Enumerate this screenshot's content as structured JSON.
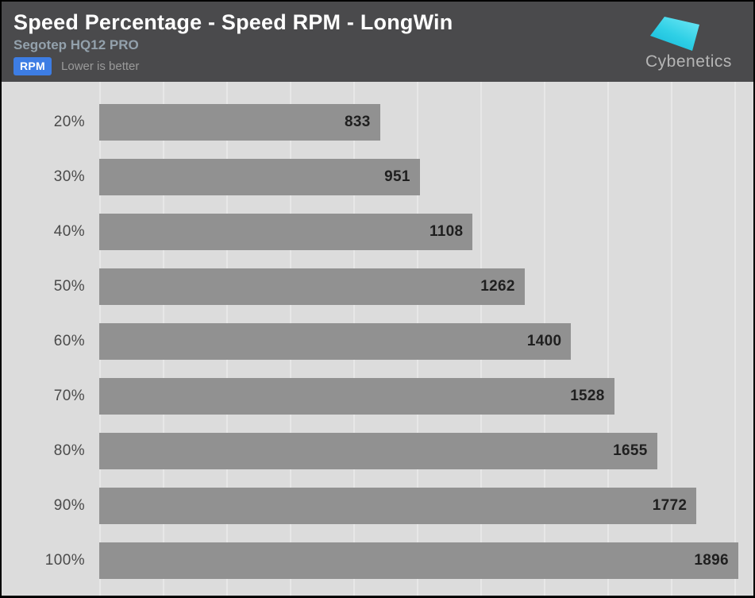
{
  "header": {
    "title": "Speed Percentage - Speed RPM - LongWin",
    "subtitle": "Segotep HQ12 PRO",
    "metric_badge": "RPM",
    "note": "Lower is better",
    "logo_text": "Cybenetics"
  },
  "colors": {
    "header_bg": "#4a4a4c",
    "badge_bg": "#3d7de4",
    "subtitle": "#93a1ac",
    "note": "#9a9a9a",
    "chart_bg": "#dcdcdc",
    "gridline": "#e7e7e7",
    "bar": "#919191",
    "value_label": "#1f1f1f",
    "category_label": "#4a4a4a",
    "logo_cyan_light": "#64e3f2",
    "logo_cyan_dark": "#12b5d8"
  },
  "chart_data": {
    "type": "bar",
    "orientation": "horizontal",
    "title": "Speed Percentage - Speed RPM - LongWin",
    "subtitle": "Segotep HQ12 PRO",
    "unit": "RPM",
    "note": "Lower is better",
    "categories": [
      "20%",
      "30%",
      "40%",
      "50%",
      "60%",
      "70%",
      "80%",
      "90%",
      "100%"
    ],
    "values": [
      833,
      951,
      1108,
      1262,
      1400,
      1528,
      1655,
      1772,
      1896
    ],
    "xlabel": "",
    "ylabel": "Speed Percentage",
    "xlim": [
      0,
      1941
    ],
    "grid": "vertical",
    "gridline_spacing_px": 80,
    "value_labels": "inside-end",
    "legend": "none"
  }
}
